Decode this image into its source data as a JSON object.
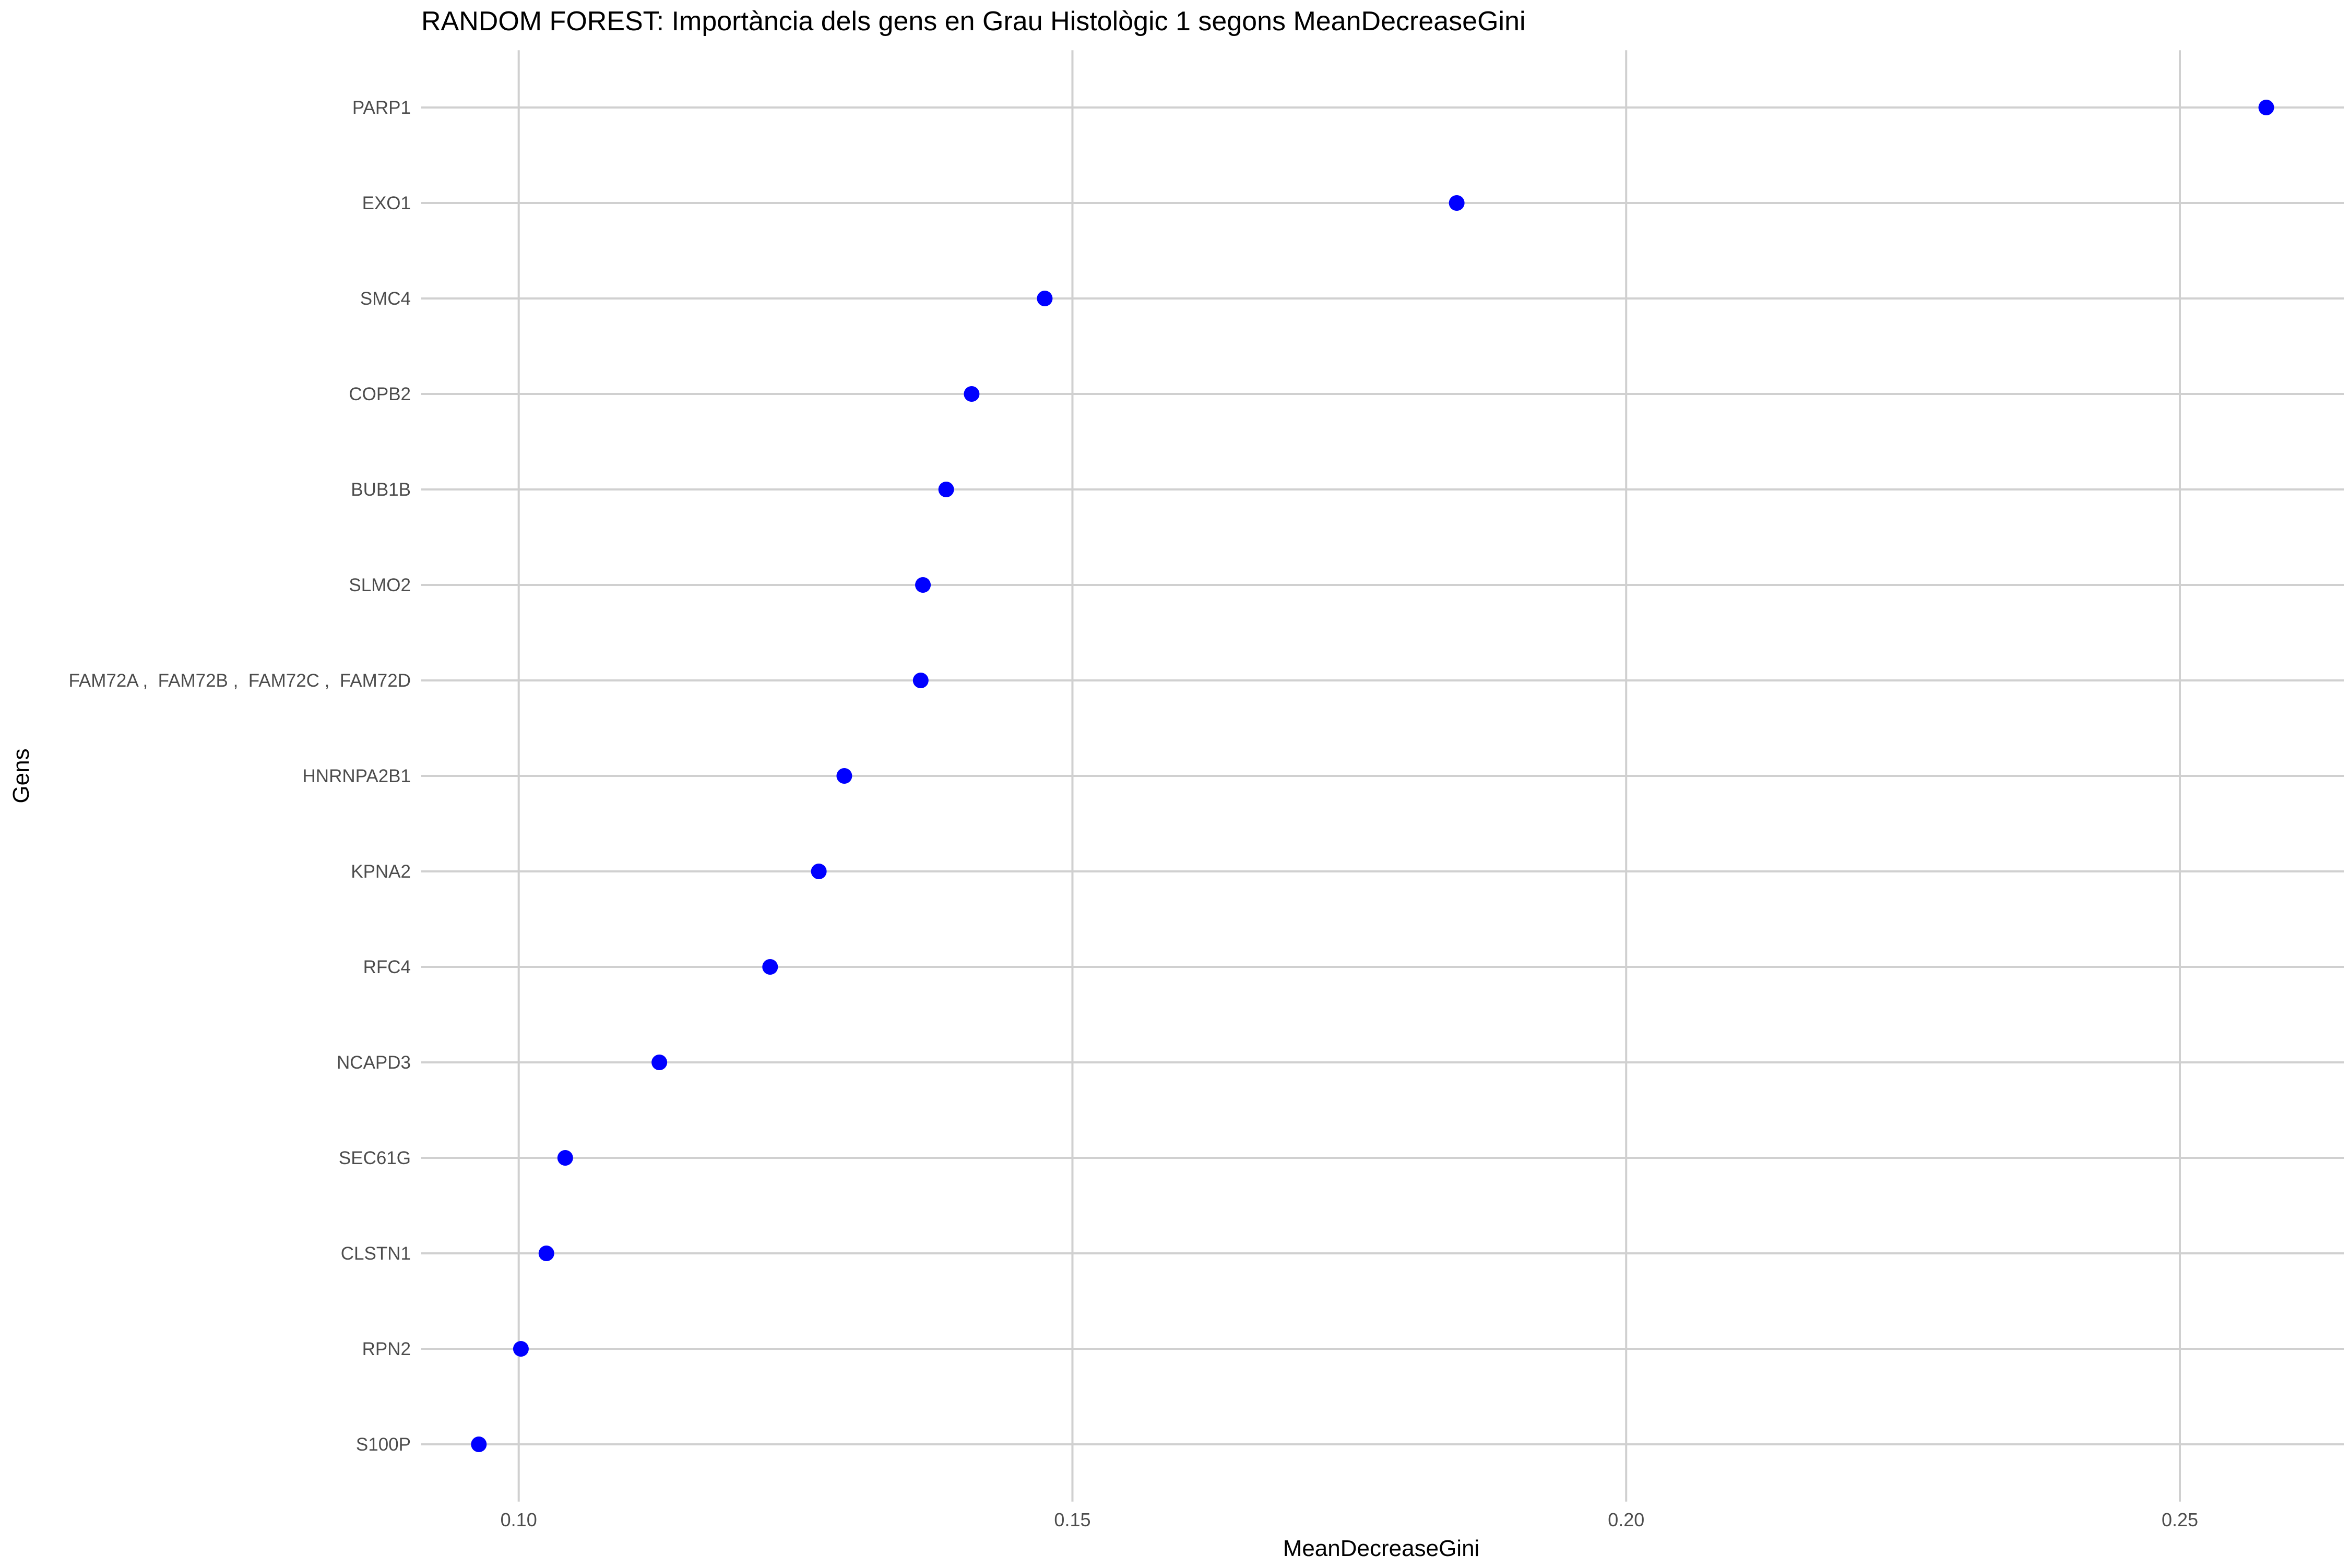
{
  "chart_data": {
    "type": "scatter",
    "title": "RANDOM FOREST: Importància dels gens en Grau Histològic 1 segons MeanDecreaseGini",
    "xlabel": "MeanDecreaseGini",
    "ylabel": "Gens",
    "xlim": [
      0.0912,
      0.2648
    ],
    "xticks": [
      0.1,
      0.15,
      0.2,
      0.25
    ],
    "xtick_labels": [
      "0.10",
      "0.15",
      "0.20",
      "0.25"
    ],
    "grid": true,
    "legend": "none",
    "categories": [
      "PARP1",
      "EXO1",
      "SMC4",
      "COPB2",
      "BUB1B",
      "SLMO2",
      "FAM72A ,  FAM72B ,  FAM72C ,  FAM72D",
      "HNRNPA2B1",
      "KPNA2",
      "RFC4",
      "NCAPD3",
      "SEC61G",
      "CLSTN1",
      "RPN2",
      "S100P"
    ],
    "values": [
      0.2578,
      0.1847,
      0.1475,
      0.1409,
      0.1386,
      0.1365,
      0.1363,
      0.1294,
      0.1271,
      0.1227,
      0.1127,
      0.1042,
      0.1025,
      0.1002,
      0.0964
    ],
    "colors": {
      "point": "#0000ff",
      "grid": "#d0d0d0",
      "tick_text": "#4d4d4d",
      "title_text": "#000000"
    }
  }
}
